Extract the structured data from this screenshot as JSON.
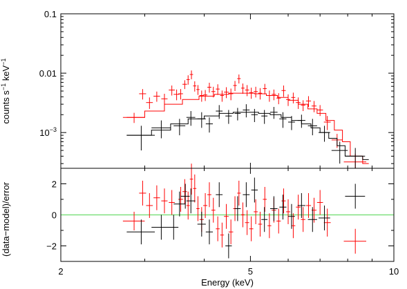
{
  "chart_data": [
    {
      "type": "scatter",
      "panel": "spectrum",
      "xscale": "log",
      "yscale": "log",
      "xlim": [
        2,
        10
      ],
      "ylim": [
        0.00025,
        0.1
      ],
      "ylabel_parts": {
        "base": "counts s",
        "exp1": "−1",
        "mid": " keV",
        "exp2": "−1"
      },
      "yticks": [
        {
          "value": 0.1,
          "label": "0.1"
        },
        {
          "value": 0.01,
          "label": "0.01"
        },
        {
          "value": 0.001,
          "label": "10",
          "sup": "−3"
        }
      ],
      "colors": {
        "black": "#000000",
        "red": "#ff0000"
      },
      "series": [
        {
          "color": "#ff0000",
          "points": [
            [
              2.85,
              0.0018,
              0.00035,
              0.15
            ],
            [
              2.97,
              0.0045,
              0.0009,
              0.05
            ],
            [
              3.07,
              0.0032,
              0.0007,
              0.05
            ],
            [
              3.18,
              0.0041,
              0.0008,
              0.05
            ],
            [
              3.3,
              0.0037,
              0.0008,
              0.05
            ],
            [
              3.42,
              0.0052,
              0.001,
              0.05
            ],
            [
              3.5,
              0.0044,
              0.0009,
              0.05
            ],
            [
              3.57,
              0.0045,
              0.0009,
              0.04
            ],
            [
              3.64,
              0.0065,
              0.0011,
              0.04
            ],
            [
              3.7,
              0.0078,
              0.0014,
              0.03
            ],
            [
              3.76,
              0.0095,
              0.0016,
              0.03
            ],
            [
              3.82,
              0.0061,
              0.0012,
              0.03
            ],
            [
              3.88,
              0.0053,
              0.001,
              0.03
            ],
            [
              3.95,
              0.0042,
              0.0009,
              0.04
            ],
            [
              4.02,
              0.0043,
              0.0009,
              0.04
            ],
            [
              4.1,
              0.0058,
              0.0011,
              0.04
            ],
            [
              4.18,
              0.0049,
              0.001,
              0.04
            ],
            [
              4.27,
              0.0054,
              0.0011,
              0.04
            ],
            [
              4.36,
              0.0042,
              0.0009,
              0.04
            ],
            [
              4.45,
              0.0048,
              0.001,
              0.05
            ],
            [
              4.55,
              0.0045,
              0.001,
              0.05
            ],
            [
              4.64,
              0.0062,
              0.0012,
              0.04
            ],
            [
              4.73,
              0.0081,
              0.0014,
              0.04
            ],
            [
              4.82,
              0.0056,
              0.0011,
              0.04
            ],
            [
              4.92,
              0.0052,
              0.0011,
              0.05
            ],
            [
              5.02,
              0.0047,
              0.001,
              0.05
            ],
            [
              5.13,
              0.0049,
              0.001,
              0.05
            ],
            [
              5.24,
              0.0046,
              0.001,
              0.05
            ],
            [
              5.36,
              0.0055,
              0.0011,
              0.05
            ],
            [
              5.48,
              0.0042,
              0.0009,
              0.05
            ],
            [
              5.6,
              0.0044,
              0.0009,
              0.06
            ],
            [
              5.73,
              0.0038,
              0.0008,
              0.06
            ],
            [
              5.87,
              0.0051,
              0.0011,
              0.06
            ],
            [
              6.0,
              0.0036,
              0.0008,
              0.06
            ],
            [
              6.15,
              0.0039,
              0.0008,
              0.06
            ],
            [
              6.3,
              0.0032,
              0.0007,
              0.07
            ],
            [
              6.45,
              0.0029,
              0.0006,
              0.07
            ],
            [
              6.62,
              0.0034,
              0.0007,
              0.08
            ],
            [
              6.8,
              0.0028,
              0.0006,
              0.08
            ],
            [
              7.0,
              0.0024,
              0.0005,
              0.1
            ],
            [
              7.25,
              0.0015,
              0.0004,
              0.12
            ],
            [
              7.6,
              0.00075,
              0.0002,
              0.2
            ],
            [
              8.3,
              0.00032,
              0.00012,
              0.45
            ]
          ],
          "model": [
            [
              2.75,
              0.0018
            ],
            [
              3.0,
              0.0023
            ],
            [
              3.3,
              0.003
            ],
            [
              3.6,
              0.0036
            ],
            [
              3.9,
              0.0041
            ],
            [
              4.2,
              0.0044
            ],
            [
              4.5,
              0.0046
            ],
            [
              4.8,
              0.0046
            ],
            [
              5.1,
              0.0045
            ],
            [
              5.4,
              0.0042
            ],
            [
              5.7,
              0.0039
            ],
            [
              6.0,
              0.0035
            ],
            [
              6.3,
              0.003
            ],
            [
              6.6,
              0.0025
            ],
            [
              6.9,
              0.0021
            ],
            [
              7.2,
              0.0016
            ],
            [
              7.5,
              0.0011
            ],
            [
              7.8,
              0.0007
            ],
            [
              8.1,
              0.0004
            ],
            [
              8.6,
              0.0003
            ]
          ]
        },
        {
          "color": "#000000",
          "points": [
            [
              2.95,
              0.0009,
              0.0004,
              0.2
            ],
            [
              3.25,
              0.0012,
              0.0004,
              0.15
            ],
            [
              3.55,
              0.0013,
              0.0004,
              0.1
            ],
            [
              3.75,
              0.0018,
              0.0005,
              0.08
            ],
            [
              3.95,
              0.0017,
              0.0005,
              0.08
            ],
            [
              4.1,
              0.0014,
              0.0004,
              0.07
            ],
            [
              4.3,
              0.0023,
              0.0006,
              0.07
            ],
            [
              4.5,
              0.0019,
              0.0005,
              0.07
            ],
            [
              4.7,
              0.0021,
              0.0005,
              0.07
            ],
            [
              4.9,
              0.0024,
              0.0006,
              0.08
            ],
            [
              5.1,
              0.002,
              0.0005,
              0.08
            ],
            [
              5.35,
              0.0019,
              0.0005,
              0.08
            ],
            [
              5.6,
              0.0022,
              0.0005,
              0.1
            ],
            [
              5.85,
              0.0017,
              0.0005,
              0.1
            ],
            [
              6.1,
              0.0015,
              0.0004,
              0.1
            ],
            [
              6.4,
              0.0016,
              0.0004,
              0.12
            ],
            [
              6.75,
              0.0013,
              0.0004,
              0.15
            ],
            [
              7.15,
              0.001,
              0.0003,
              0.2
            ],
            [
              7.7,
              0.0005,
              0.0002,
              0.3
            ],
            [
              8.3,
              0.0004,
              0.00015,
              0.4
            ]
          ],
          "model": [
            [
              2.75,
              0.0009
            ],
            [
              3.1,
              0.0011
            ],
            [
              3.4,
              0.0014
            ],
            [
              3.7,
              0.0017
            ],
            [
              4.0,
              0.0019
            ],
            [
              4.3,
              0.0021
            ],
            [
              4.6,
              0.0022
            ],
            [
              4.9,
              0.0022
            ],
            [
              5.2,
              0.0021
            ],
            [
              5.5,
              0.002
            ],
            [
              5.8,
              0.0018
            ],
            [
              6.1,
              0.0016
            ],
            [
              6.4,
              0.0014
            ],
            [
              6.7,
              0.0012
            ],
            [
              7.0,
              0.001
            ],
            [
              7.3,
              0.0008
            ],
            [
              7.6,
              0.0006
            ],
            [
              7.9,
              0.0004
            ],
            [
              8.6,
              0.00035
            ]
          ]
        }
      ]
    },
    {
      "type": "scatter",
      "panel": "residuals",
      "xscale": "log",
      "xlim": [
        2,
        10
      ],
      "ylim": [
        -3,
        3
      ],
      "ylabel": "(data−model)/error",
      "xlabel": "Energy (keV)",
      "xticks": [
        {
          "value": 2,
          "label": "2"
        },
        {
          "value": 5,
          "label": "5"
        },
        {
          "value": 10,
          "label": "10"
        }
      ],
      "yticks": [
        {
          "value": 2,
          "label": "2"
        },
        {
          "value": 0,
          "label": "0"
        },
        {
          "value": -2,
          "label": "−2"
        }
      ],
      "zero_line_color": "#7fe07f",
      "series": [
        {
          "color": "#ff0000",
          "points": [
            [
              2.85,
              -0.4,
              0.6,
              0.15
            ],
            [
              2.97,
              1.4,
              0.8,
              0.05
            ],
            [
              3.07,
              0.6,
              0.8,
              0.05
            ],
            [
              3.18,
              1.1,
              0.8,
              0.05
            ],
            [
              3.3,
              0.9,
              0.8,
              0.05
            ],
            [
              3.42,
              0.8,
              0.8,
              0.05
            ],
            [
              3.57,
              1.0,
              0.8,
              0.04
            ],
            [
              3.64,
              1.5,
              0.8,
              0.04
            ],
            [
              3.7,
              0.6,
              0.9,
              0.03
            ],
            [
              3.76,
              2.3,
              1.0,
              0.03
            ],
            [
              3.82,
              1.7,
              0.9,
              0.03
            ],
            [
              3.88,
              0.4,
              0.8,
              0.03
            ],
            [
              3.95,
              -0.3,
              0.8,
              0.04
            ],
            [
              4.02,
              0.6,
              0.8,
              0.04
            ],
            [
              4.1,
              1.3,
              0.8,
              0.04
            ],
            [
              4.18,
              0.3,
              0.8,
              0.04
            ],
            [
              4.27,
              -0.9,
              0.8,
              0.04
            ],
            [
              4.36,
              -1.3,
              0.8,
              0.04
            ],
            [
              4.45,
              -0.1,
              0.8,
              0.05
            ],
            [
              4.55,
              -1.1,
              0.8,
              0.05
            ],
            [
              4.64,
              0.4,
              0.8,
              0.04
            ],
            [
              4.73,
              1.4,
              0.8,
              0.04
            ],
            [
              4.82,
              0.0,
              0.8,
              0.04
            ],
            [
              4.92,
              -0.5,
              0.8,
              0.05
            ],
            [
              5.02,
              -0.9,
              0.8,
              0.05
            ],
            [
              5.13,
              0.2,
              0.8,
              0.05
            ],
            [
              5.24,
              -0.6,
              0.8,
              0.05
            ],
            [
              5.36,
              1.0,
              0.8,
              0.05
            ],
            [
              5.48,
              -0.7,
              0.8,
              0.05
            ],
            [
              5.6,
              0.3,
              0.8,
              0.06
            ],
            [
              5.73,
              -0.4,
              0.8,
              0.06
            ],
            [
              5.87,
              0.9,
              0.8,
              0.06
            ],
            [
              6.0,
              0.2,
              0.8,
              0.06
            ],
            [
              6.15,
              -0.7,
              0.8,
              0.06
            ],
            [
              6.3,
              0.5,
              0.8,
              0.07
            ],
            [
              6.45,
              -0.3,
              0.8,
              0.07
            ],
            [
              6.62,
              0.6,
              0.8,
              0.08
            ],
            [
              6.8,
              0.3,
              0.8,
              0.08
            ],
            [
              7.0,
              0.8,
              0.8,
              0.1
            ],
            [
              7.25,
              -0.5,
              0.9,
              0.12
            ],
            [
              8.3,
              -1.7,
              0.8,
              0.45
            ]
          ]
        },
        {
          "color": "#000000",
          "points": [
            [
              2.95,
              -1.1,
              0.8,
              0.2
            ],
            [
              3.25,
              -0.8,
              0.8,
              0.15
            ],
            [
              3.45,
              -0.8,
              0.8,
              0.08
            ],
            [
              3.55,
              0.7,
              0.8,
              0.1
            ],
            [
              3.65,
              1.2,
              0.8,
              0.08
            ],
            [
              3.75,
              0.9,
              0.8,
              0.08
            ],
            [
              3.95,
              -0.6,
              0.8,
              0.08
            ],
            [
              4.1,
              -1.1,
              0.8,
              0.07
            ],
            [
              4.3,
              1.3,
              0.8,
              0.07
            ],
            [
              4.5,
              -2.0,
              0.8,
              0.07
            ],
            [
              4.7,
              0.4,
              0.8,
              0.07
            ],
            [
              4.9,
              1.3,
              0.8,
              0.08
            ],
            [
              5.1,
              1.6,
              0.8,
              0.08
            ],
            [
              5.35,
              -0.3,
              0.8,
              0.08
            ],
            [
              5.6,
              0.4,
              0.8,
              0.1
            ],
            [
              5.85,
              0.5,
              0.8,
              0.1
            ],
            [
              6.1,
              -0.1,
              0.8,
              0.1
            ],
            [
              6.4,
              0.6,
              0.8,
              0.12
            ],
            [
              6.75,
              -0.3,
              0.8,
              0.15
            ],
            [
              7.15,
              -0.2,
              0.8,
              0.2
            ],
            [
              8.3,
              1.2,
              0.8,
              0.4
            ]
          ]
        }
      ]
    }
  ]
}
